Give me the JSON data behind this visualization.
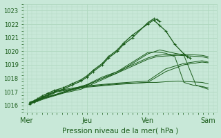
{
  "bg_color": "#c8e8d8",
  "grid_color": "#b0d8c0",
  "line_color": "#1a5c1a",
  "xlabels": [
    "Mer",
    "Jeu",
    "Ven",
    "Sam"
  ],
  "xlabel": "Pression niveau de la mer( hPa )",
  "ylim": [
    1015.5,
    1023.5
  ],
  "yticks": [
    1016,
    1017,
    1018,
    1019,
    1020,
    1021,
    1022,
    1023
  ],
  "xtick_positions": [
    0,
    1,
    2,
    3
  ],
  "lines_marked": [
    {
      "x": [
        0.05,
        0.12,
        0.18,
        0.25,
        0.35,
        0.45,
        0.6,
        0.75,
        0.9,
        1.0,
        1.1,
        1.25,
        1.35,
        1.5,
        1.6,
        1.75,
        2.0,
        2.1,
        2.15,
        2.2
      ],
      "y": [
        1016.1,
        1016.25,
        1016.4,
        1016.6,
        1016.8,
        1017.0,
        1017.2,
        1017.5,
        1017.8,
        1018.1,
        1018.5,
        1019.0,
        1019.5,
        1020.0,
        1020.5,
        1021.0,
        1022.1,
        1022.4,
        1022.35,
        1022.2
      ]
    },
    {
      "x": [
        0.05,
        0.12,
        0.18,
        0.25,
        0.35,
        0.45,
        0.6,
        0.75,
        0.9,
        1.0,
        1.1,
        1.25,
        1.35,
        1.5,
        1.6,
        1.75,
        2.0,
        2.1,
        2.2,
        2.3,
        2.45,
        2.6,
        2.65,
        2.7
      ],
      "y": [
        1016.2,
        1016.35,
        1016.5,
        1016.7,
        1016.9,
        1017.1,
        1017.3,
        1017.6,
        1017.9,
        1018.2,
        1018.6,
        1019.1,
        1019.6,
        1020.1,
        1020.6,
        1021.2,
        1022.0,
        1022.3,
        1021.9,
        1021.5,
        1020.5,
        1019.8,
        1019.6,
        1019.5
      ]
    }
  ],
  "lines_plain": [
    {
      "x": [
        0.05,
        0.5,
        1.0,
        1.5,
        2.0,
        2.15,
        2.3,
        2.5,
        2.7,
        2.9,
        3.0
      ],
      "y": [
        1016.1,
        1017.0,
        1017.4,
        1017.6,
        1017.7,
        1017.7,
        1017.75,
        1017.8,
        1017.75,
        1017.7,
        1017.6
      ]
    },
    {
      "x": [
        0.05,
        0.5,
        1.0,
        1.5,
        2.0,
        2.3,
        2.6,
        2.9,
        3.0
      ],
      "y": [
        1016.15,
        1017.05,
        1017.35,
        1017.55,
        1017.7,
        1018.5,
        1019.0,
        1019.2,
        1019.15
      ]
    },
    {
      "x": [
        0.05,
        0.5,
        1.0,
        1.5,
        2.0,
        2.3,
        2.6,
        2.9,
        3.0
      ],
      "y": [
        1016.2,
        1017.1,
        1017.45,
        1017.65,
        1017.8,
        1018.7,
        1019.1,
        1019.3,
        1019.2
      ]
    },
    {
      "x": [
        0.05,
        0.3,
        0.6,
        0.9,
        1.0,
        1.1,
        1.25,
        1.5,
        1.75,
        2.0,
        2.15,
        2.3,
        2.5,
        2.7,
        2.9,
        3.0
      ],
      "y": [
        1016.1,
        1016.5,
        1016.9,
        1017.2,
        1017.4,
        1017.6,
        1017.9,
        1018.4,
        1018.9,
        1019.4,
        1019.6,
        1019.65,
        1019.7,
        1019.65,
        1019.6,
        1019.5
      ]
    },
    {
      "x": [
        0.05,
        0.3,
        0.6,
        0.9,
        1.0,
        1.1,
        1.25,
        1.5,
        1.75,
        2.0,
        2.15,
        2.3,
        2.5,
        2.7,
        2.9,
        3.0
      ],
      "y": [
        1016.15,
        1016.55,
        1016.95,
        1017.3,
        1017.5,
        1017.7,
        1018.0,
        1018.5,
        1019.0,
        1019.5,
        1019.7,
        1019.75,
        1019.8,
        1019.75,
        1019.7,
        1019.6
      ]
    },
    {
      "x": [
        0.05,
        0.3,
        0.5,
        0.7,
        1.0,
        1.25,
        1.5,
        2.0,
        2.2,
        2.4,
        2.6,
        2.8,
        3.0
      ],
      "y": [
        1016.2,
        1016.55,
        1016.8,
        1017.1,
        1017.5,
        1018.0,
        1018.4,
        1019.8,
        1020.1,
        1019.9,
        1019.7,
        1017.5,
        1017.2
      ]
    },
    {
      "x": [
        0.05,
        0.3,
        0.5,
        0.7,
        1.0,
        1.25,
        1.5,
        2.0,
        2.15,
        2.3,
        2.45,
        2.6,
        2.75,
        2.9,
        3.0
      ],
      "y": [
        1016.25,
        1016.6,
        1016.85,
        1017.15,
        1017.55,
        1018.1,
        1018.5,
        1019.9,
        1019.95,
        1019.85,
        1019.6,
        1017.7,
        1017.5,
        1017.4,
        1017.3
      ]
    }
  ]
}
